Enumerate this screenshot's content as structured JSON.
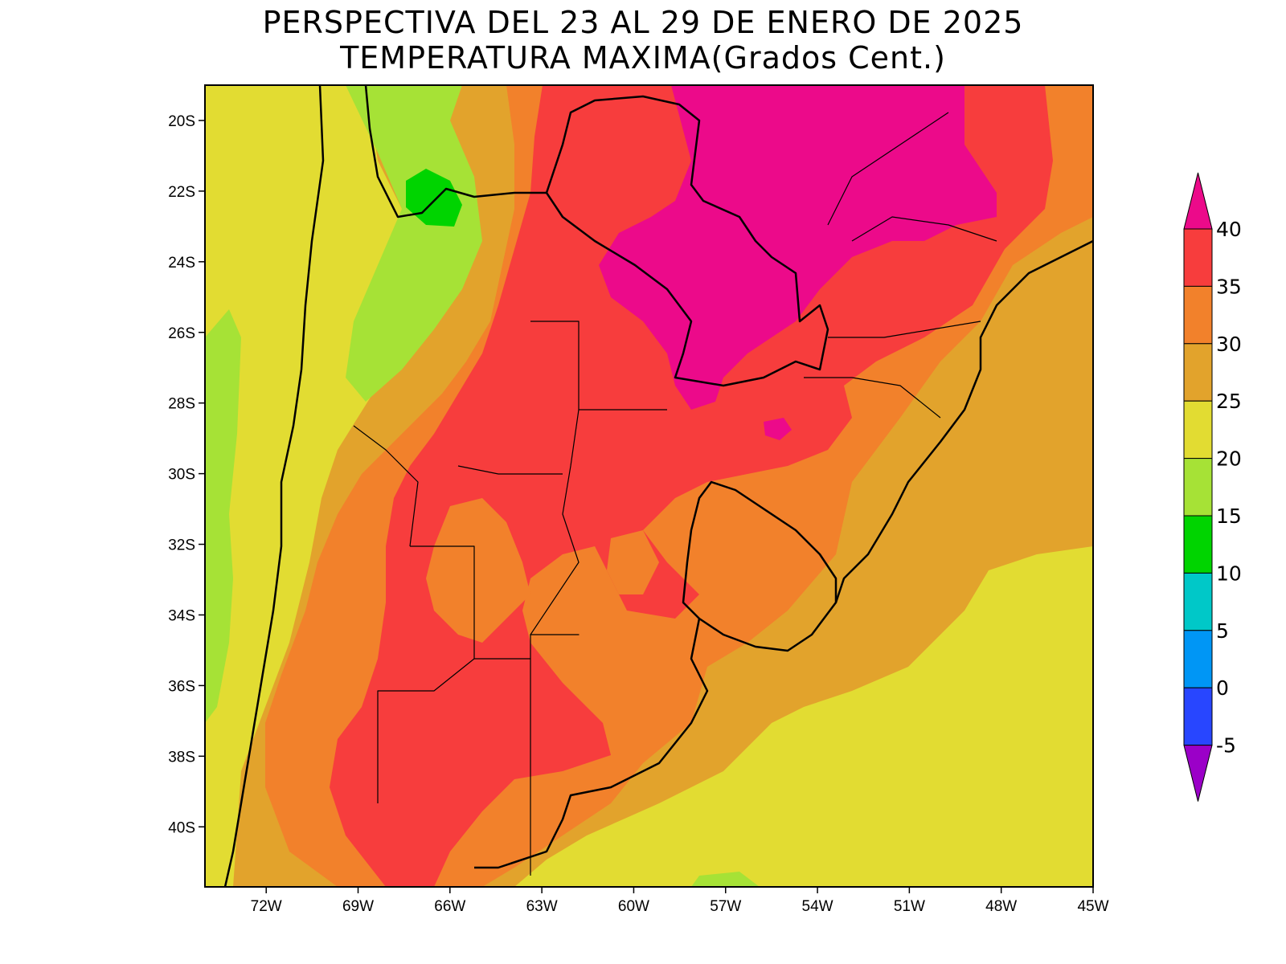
{
  "title": {
    "line1": "PERSPECTIVA DEL 23 AL 29 DE ENERO DE 2025",
    "line2": "TEMPERATURA MAXIMA(Grados Cent.)"
  },
  "map": {
    "lon_range": [
      -74.0,
      -45.0
    ],
    "lat_range": [
      -41.7,
      -19.0
    ],
    "lat_ticks": [
      {
        "value": -20,
        "label": "20S"
      },
      {
        "value": -22,
        "label": "22S"
      },
      {
        "value": -24,
        "label": "24S"
      },
      {
        "value": -26,
        "label": "26S"
      },
      {
        "value": -28,
        "label": "28S"
      },
      {
        "value": -30,
        "label": "30S"
      },
      {
        "value": -32,
        "label": "32S"
      },
      {
        "value": -34,
        "label": "34S"
      },
      {
        "value": -36,
        "label": "36S"
      },
      {
        "value": -38,
        "label": "38S"
      },
      {
        "value": -40,
        "label": "40S"
      }
    ],
    "lon_ticks": [
      {
        "value": -72,
        "label": "72W"
      },
      {
        "value": -69,
        "label": "69W"
      },
      {
        "value": -66,
        "label": "66W"
      },
      {
        "value": -63,
        "label": "63W"
      },
      {
        "value": -60,
        "label": "60W"
      },
      {
        "value": -57,
        "label": "57W"
      },
      {
        "value": -54,
        "label": "54W"
      },
      {
        "value": -51,
        "label": "51W"
      },
      {
        "value": -48,
        "label": "48W"
      },
      {
        "value": -45,
        "label": "45W"
      }
    ]
  },
  "colorbar": {
    "labels": [
      "40",
      "35",
      "30",
      "25",
      "20",
      "15",
      "10",
      "5",
      "0",
      "-5"
    ],
    "colors_top_to_bottom": [
      "#ec0a8a",
      "#f73d3d",
      "#f2812b",
      "#e2a32c",
      "#e2dc32",
      "#a6e236",
      "#00d400",
      "#00c8c8",
      "#0096f5",
      "#2846ff",
      "#9b00c8"
    ]
  },
  "colors": {
    "c40": "#ec0a8a",
    "c35": "#f73d3d",
    "c30": "#f2812b",
    "c25": "#e2a32c",
    "c20": "#e2dc32",
    "c15": "#a6e236",
    "c10": "#00d400"
  }
}
